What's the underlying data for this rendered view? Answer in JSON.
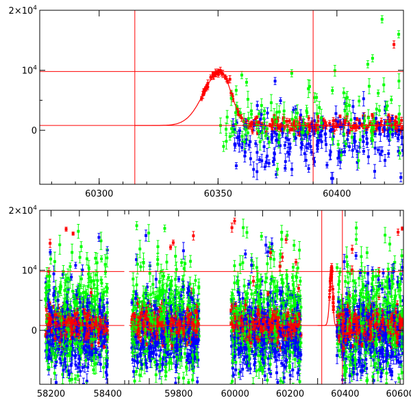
{
  "chart_data": [
    {
      "type": "scatter",
      "panel": "top",
      "xlim": [
        60275,
        60428
      ],
      "ylim": [
        -9000,
        20000
      ],
      "x_ticks": [
        60300,
        60350,
        60400
      ],
      "x_tick_labels": [
        "60300",
        "60350",
        "60400"
      ],
      "y_ticks": [
        0,
        10000,
        20000
      ],
      "y_tick_labels": [
        {
          "base": "0",
          "sup": ""
        },
        {
          "base": "10",
          "sup": "4"
        },
        {
          "base": "2×10",
          "sup": "4"
        }
      ],
      "reference_lines": {
        "horizontal": [
          800,
          9800
        ],
        "vertical": [
          60315,
          60390
        ]
      },
      "model_curve": {
        "baseline": 800,
        "peak_x": 60351,
        "peak_y": 9800,
        "rise_tau": 7,
        "decay_tau": 4.5
      },
      "series": [
        {
          "color": "#ff0000",
          "seed": 11,
          "x_range": [
            60342,
            60428
          ],
          "n": 260,
          "center": 900,
          "spread": 700,
          "err": 400,
          "follow_model": true
        },
        {
          "color": "#0000ff",
          "seed": 23,
          "x_range": [
            60356,
            60428
          ],
          "n": 200,
          "center": -1500,
          "spread": 2600,
          "err": 900,
          "follow_model": false
        },
        {
          "color": "#00ff00",
          "seed": 37,
          "x_range": [
            60350,
            60428
          ],
          "n": 110,
          "center": 1500,
          "spread": 3200,
          "err": 1000,
          "follow_model": false
        }
      ],
      "highlight_points": [
        {
          "x": 60349,
          "y": 9600,
          "color": "#ff0000"
        },
        {
          "x": 60351,
          "y": 9900,
          "color": "#ff0000"
        },
        {
          "x": 60352,
          "y": 9400,
          "color": "#ff0000"
        },
        {
          "x": 60355,
          "y": 8500,
          "color": "#ff0000"
        },
        {
          "x": 60360,
          "y": 9200,
          "color": "#00ff00"
        },
        {
          "x": 60362,
          "y": 8000,
          "color": "#00ff00"
        },
        {
          "x": 60374,
          "y": 8200,
          "color": "#0000ff"
        },
        {
          "x": 60381,
          "y": 9500,
          "color": "#00ff00"
        },
        {
          "x": 60413,
          "y": 11000,
          "color": "#00ff00"
        },
        {
          "x": 60415,
          "y": 12000,
          "color": "#00ff00"
        },
        {
          "x": 60419,
          "y": 18500,
          "color": "#00ff00"
        },
        {
          "x": 60424,
          "y": 14300,
          "color": "#ff0000"
        },
        {
          "x": 60426,
          "y": 16000,
          "color": "#00ff00"
        }
      ]
    },
    {
      "type": "scatter",
      "panel": "bottom",
      "segments": [
        {
          "xlim": [
            58160,
            58460
          ],
          "x_ticks": [
            58200,
            58300,
            58400
          ],
          "x_tick_labels": [
            "58200",
            "",
            "58400"
          ]
        },
        {
          "xlim": [
            59630,
            59880
          ],
          "x_ticks": [
            59700,
            59800
          ],
          "x_tick_labels": [
            "",
            "59800"
          ]
        },
        {
          "xlim": [
            59880,
            60612
          ],
          "x_ticks": [
            60000,
            60100,
            60200,
            60300,
            60400,
            60500,
            60600
          ],
          "x_tick_labels": [
            "60000",
            "",
            "60200",
            "",
            "60400",
            "",
            "60600"
          ]
        }
      ],
      "ylim": [
        -9000,
        20000
      ],
      "y_ticks": [
        0,
        10000,
        20000
      ],
      "y_tick_labels": [
        {
          "base": "0",
          "sup": ""
        },
        {
          "base": "10",
          "sup": "4"
        },
        {
          "base": "2×10",
          "sup": "4"
        }
      ],
      "reference_lines": {
        "horizontal": [
          800,
          9800
        ],
        "vertical": [
          60315,
          60390
        ]
      },
      "model_curve": {
        "baseline": 800,
        "peak_x": 60351,
        "peak_y": 9800,
        "rise_tau": 7,
        "decay_tau": 4.5,
        "x_range": [
          60300,
          60375
        ]
      },
      "observing_seasons": [
        {
          "x_range": [
            58180,
            58400
          ],
          "n": 900
        },
        {
          "x_range": [
            59640,
            59870
          ],
          "n": 1000
        },
        {
          "x_range": [
            59985,
            60240
          ],
          "n": 1000
        },
        {
          "x_range": [
            60370,
            60612
          ],
          "n": 1000
        }
      ],
      "series": [
        {
          "color": "#ff0000",
          "center": 800,
          "spread": 1300,
          "err": 600
        },
        {
          "color": "#0000ff",
          "center": -700,
          "spread": 3600,
          "err": 1000
        },
        {
          "color": "#00ff00",
          "center": 1300,
          "spread": 4800,
          "err": 1200
        }
      ]
    }
  ]
}
